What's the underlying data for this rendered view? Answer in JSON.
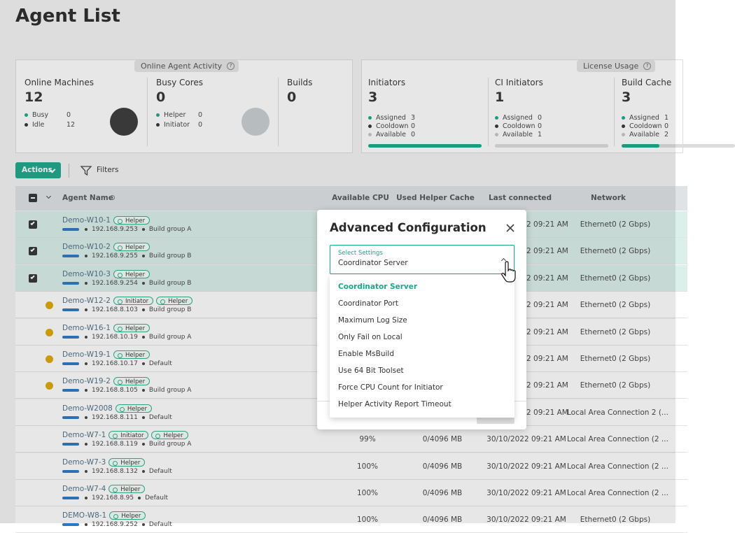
{
  "header": {
    "title": "Agent List"
  },
  "online_activity": {
    "label": "Online Agent Activity",
    "cards": [
      {
        "title": "Online Machines",
        "value": 12,
        "legend": [
          {
            "label": "Busy",
            "value": 0
          },
          {
            "label": "Idle",
            "value": 12
          }
        ]
      },
      {
        "title": "Busy Cores",
        "value": 0,
        "legend": [
          {
            "label": "Helper",
            "value": 0
          },
          {
            "label": "Initiator",
            "value": 0
          }
        ]
      },
      {
        "title": "Builds",
        "value": 0
      }
    ]
  },
  "license_usage": {
    "label": "License Usage",
    "cards": [
      {
        "title": "Initiators",
        "value": 3,
        "legend": [
          {
            "label": "Assigned",
            "value": 3
          },
          {
            "label": "Cooldown",
            "value": 0
          },
          {
            "label": "Available",
            "value": 0
          }
        ]
      },
      {
        "title": "CI Initiators",
        "value": 1,
        "legend": [
          {
            "label": "Assigned",
            "value": 0
          },
          {
            "label": "Cooldown",
            "value": 0
          },
          {
            "label": "Available",
            "value": 1
          }
        ]
      },
      {
        "title": "Build Cache",
        "value": 3,
        "legend": [
          {
            "label": "Assigned",
            "value": 1
          },
          {
            "label": "Cooldown",
            "value": 0
          },
          {
            "label": "Available",
            "value": 2
          }
        ]
      }
    ]
  },
  "toolbar": {
    "actions": "Actions",
    "filters": "Filters"
  },
  "table": {
    "columns": [
      "Agent Name",
      "Available CPU",
      "Used Helper Cache",
      "Last connected",
      "Network"
    ],
    "rows": [
      {
        "name": "Demo-W10-1",
        "tags": [
          "Helper"
        ],
        "ip": "192.168.9.253",
        "group": "Build group A",
        "selected": true,
        "last": "2 09:21 AM",
        "network": "Ethernet0 (2 Gbps)"
      },
      {
        "name": "Demo-W10-2",
        "tags": [
          "Helper"
        ],
        "ip": "192.168.9.255",
        "group": "Build group B",
        "selected": true,
        "last": "2 09:21 AM",
        "network": "Ethernet0 (2 Gbps)"
      },
      {
        "name": "Demo-W10-3",
        "tags": [
          "Helper"
        ],
        "ip": "192.168.9.254",
        "group": "Build group B",
        "selected": true,
        "last": "2 09:21 AM",
        "network": "Ethernet0 (2 Gbps)"
      },
      {
        "name": "Demo-W12-2",
        "tags": [
          "Initiator",
          "Helper"
        ],
        "ip": "192.168.8.103",
        "group": "Build group B",
        "warning": true,
        "last": "2 09:21 AM",
        "network": "Ethernet0 (2 Gbps)"
      },
      {
        "name": "Demo-W16-1",
        "tags": [
          "Helper"
        ],
        "ip": "192.168.10.19",
        "group": "Build group A",
        "warning": true,
        "last": "2 09:21 AM",
        "network": "Ethernet0 (2 Gbps)"
      },
      {
        "name": "Demo-W19-1",
        "tags": [
          "Helper"
        ],
        "ip": "192.168.10.17",
        "group": "Default",
        "warning": true,
        "last": "2 09:21 AM",
        "network": "Ethernet0 (2 Gbps)"
      },
      {
        "name": "Demo-W19-2",
        "tags": [
          "Helper"
        ],
        "ip": "192.168.8.105",
        "group": "Build group A",
        "warning": true,
        "last": "2 09:21 AM",
        "network": "Ethernet0 (2 Gbps)"
      },
      {
        "name": "Demo-W2008",
        "tags": [
          "Helper"
        ],
        "ip": "192.168.8.111",
        "group": "Default",
        "last": "2 09:21 AM",
        "network": "Local Area Connection 2 (..."
      },
      {
        "name": "Demo-W7-1",
        "tags": [
          "Initiator",
          "Helper"
        ],
        "ip": "192.168.8.119",
        "group": "Build group A",
        "cpu": "99%",
        "cache": "0/4096 MB",
        "last_full": "30/10/2022 09:21 AM",
        "network": "Local Area Connection (2 ..."
      },
      {
        "name": "Demo-W7-3",
        "tags": [
          "Helper"
        ],
        "ip": "192.168.8.132",
        "group": "Default",
        "cpu": "100%",
        "cache": "0/4096 MB",
        "last_full": "30/10/2022 09:21 AM",
        "network": "Local Area Connection (2 ..."
      },
      {
        "name": "Demo-W7-4",
        "tags": [
          "Helper"
        ],
        "ip": "192.168.8.95",
        "group": "Default",
        "cpu": "100%",
        "cache": "0/4096 MB",
        "last_full": "30/10/2022 09:21 AM",
        "network": "Local Area Connection (2 ..."
      },
      {
        "name": "DEMO-W8-1",
        "tags": [
          "Helper"
        ],
        "ip": "192.168.9.252",
        "group": "Default",
        "cpu": "100%",
        "cache": "0/4096 MB",
        "last_full": "30/10/2022 09:21 AM",
        "network": "Ethernet0 (2 Gbps)"
      }
    ]
  },
  "modal": {
    "title": "Advanced Configuration",
    "select_label": "Select Settings",
    "select_value": "Coordinator Server",
    "options": [
      "Coordinator Server",
      "Coordinator Port",
      "Maximum Log Size",
      "Only Fail on Local",
      "Enable MsBuild",
      "Use 64 Bit Toolset",
      "Force CPU Count for Initiator",
      "Helper Activity Report Timeout"
    ]
  }
}
